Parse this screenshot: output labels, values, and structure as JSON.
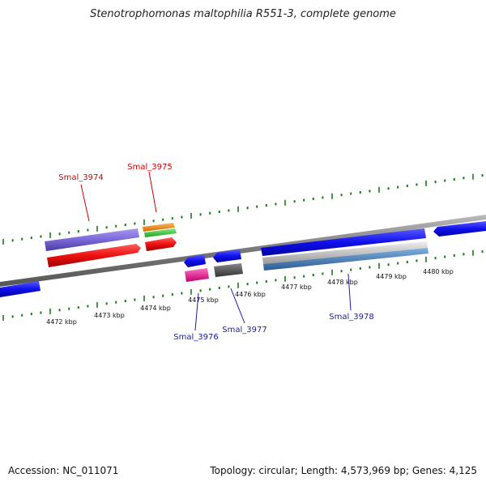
{
  "title": "Stenotrophomonas maltophilia R551-3, complete genome",
  "footer": {
    "accession": "Accession: NC_011071",
    "topology": "Topology: circular; Length: 4,573,969 bp; Genes: 4,125"
  },
  "scale_labels": [
    "4472 kbp",
    "4473 kbp",
    "4474 kbp",
    "4475 kbp",
    "4476 kbp",
    "4477 kbp",
    "4478 kbp",
    "4479 kbp",
    "4480 kbp"
  ],
  "gene_labels": {
    "smal_3974": "Smal_3974",
    "smal_3975": "Smal_3975",
    "smal_3976": "Smal_3976",
    "smal_3977": "Smal_3977",
    "smal_3978": "Smal_3978"
  },
  "colors": {
    "top_label": "#cc0000",
    "bottom_label": "#1a1aaa",
    "tick": "#1a7a1a",
    "backbone": "#888888",
    "gene_blue": "#1010ee",
    "gene_red": "#ee1010",
    "gene_purple": "#7b68d8",
    "gene_orange": "#f08a10",
    "gene_green": "#40c040",
    "gene_pink": "#ee2090",
    "gene_dark": "#555555",
    "gene_silver": "#c0c0c0",
    "gene_steel": "#4682b4"
  }
}
